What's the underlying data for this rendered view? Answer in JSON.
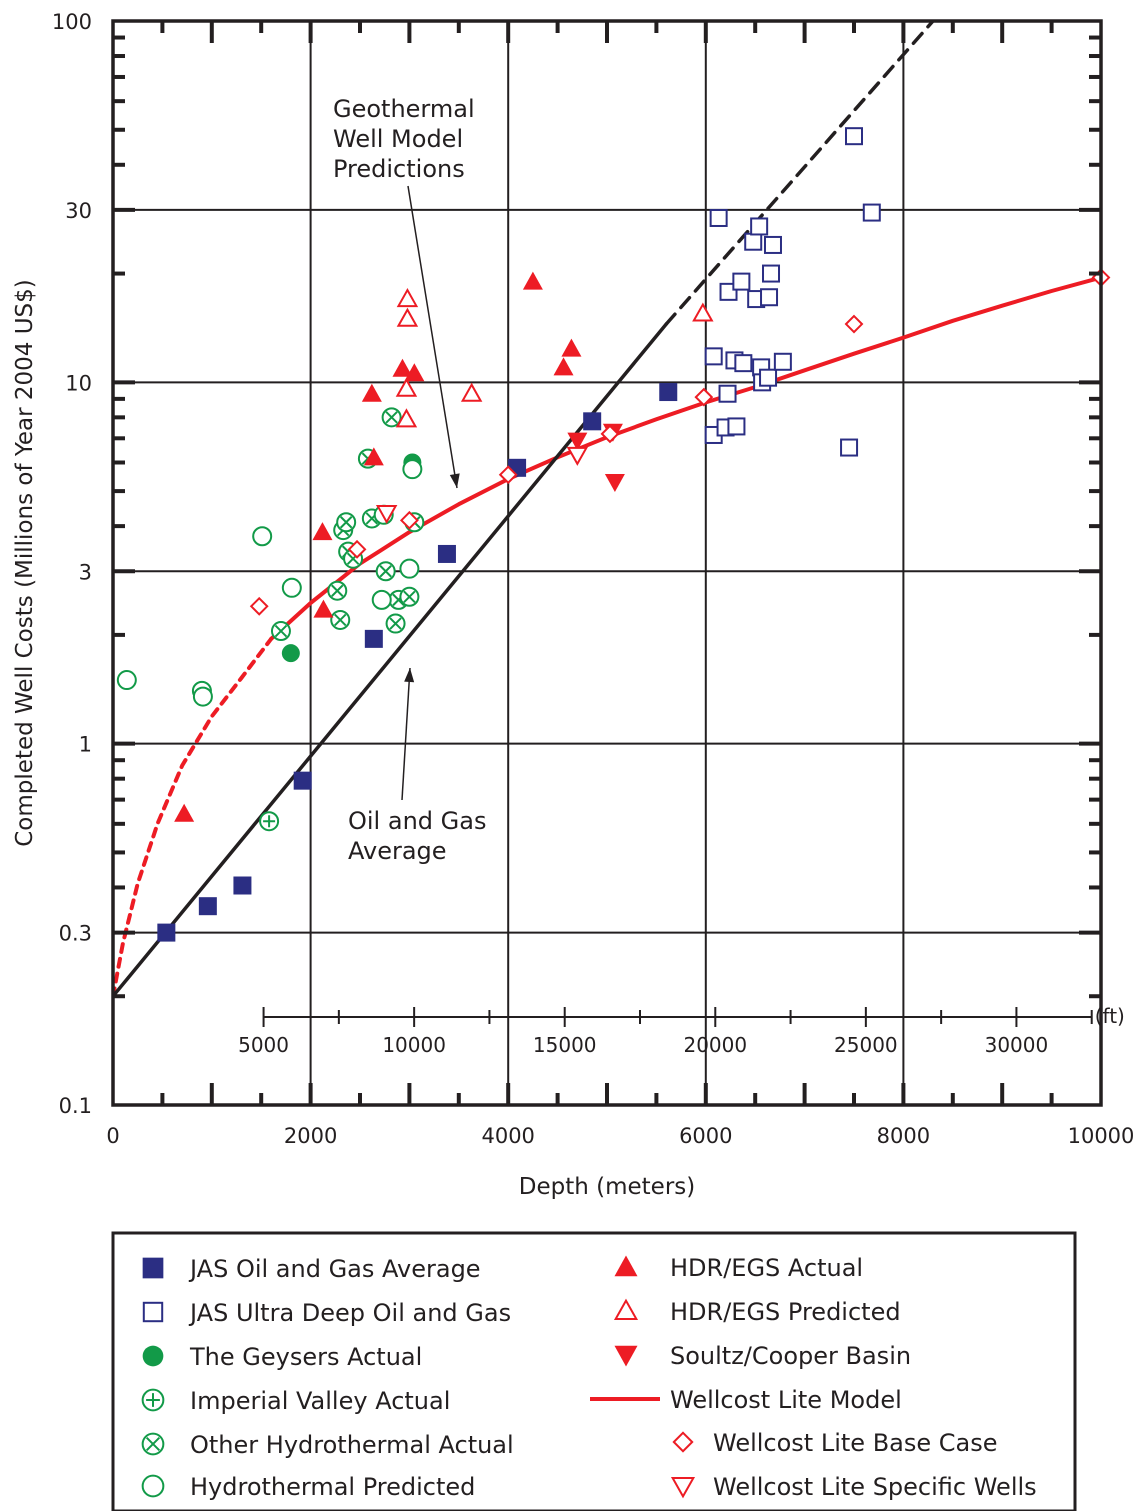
{
  "chart_data": {
    "type": "scatter",
    "xlabel": "Depth (meters)",
    "ylabel": "Completed Well Costs (Millions of Year 2004 US$)",
    "xlim": [
      0,
      10000
    ],
    "ylim": [
      0.1,
      100
    ],
    "y_scale": "log",
    "grid": true,
    "x_ticks": [
      "0",
      "2000",
      "4000",
      "6000",
      "8000",
      "10000"
    ],
    "y_ticks": [
      "0.1",
      "0.3",
      "1",
      "3",
      "10",
      "30",
      "100"
    ],
    "secondary_x": {
      "unit_label": "(ft)",
      "ticks": [
        "5000",
        "10000",
        "15000",
        "20000",
        "25000",
        "30000"
      ],
      "range": [
        5000,
        32500
      ]
    },
    "annotations": {
      "geothermal": "Geothermal\nWell Model\nPredictions",
      "oilgas": "Oil and Gas\nAverage"
    },
    "series": [
      {
        "key": "jas_avg",
        "name": "JAS Oil and Gas Average",
        "marker": "square-filled",
        "color": "#2b2e83",
        "points": [
          [
            540,
            0.3
          ],
          [
            960,
            0.355
          ],
          [
            1310,
            0.405
          ],
          [
            1920,
            0.79
          ],
          [
            2640,
            1.95
          ],
          [
            3380,
            3.35
          ],
          [
            4090,
            5.8
          ],
          [
            4850,
            7.8
          ],
          [
            5620,
            9.4
          ]
        ]
      },
      {
        "key": "jas_ultra",
        "name": "JAS Ultra Deep Oil and Gas",
        "marker": "square-open",
        "color": "#2b2e83",
        "points": [
          [
            6080,
            11.8
          ],
          [
            6130,
            28.5
          ],
          [
            6230,
            17.8
          ],
          [
            6220,
            9.3
          ],
          [
            6080,
            7.15
          ],
          [
            6200,
            7.5
          ],
          [
            6310,
            7.55
          ],
          [
            6290,
            11.5
          ],
          [
            6380,
            11.3
          ],
          [
            6360,
            19.0
          ],
          [
            6480,
            24.5
          ],
          [
            6510,
            17.0
          ],
          [
            6560,
            11.0
          ],
          [
            6540,
            27.0
          ],
          [
            6570,
            10.0
          ],
          [
            6630,
            10.3
          ],
          [
            6640,
            17.2
          ],
          [
            6660,
            20.0
          ],
          [
            6680,
            24.0
          ],
          [
            6780,
            11.4
          ],
          [
            7450,
            6.6
          ],
          [
            7500,
            48.0
          ],
          [
            7680,
            29.5
          ]
        ]
      },
      {
        "key": "geysers",
        "name": "The Geysers Actual",
        "marker": "circle-filled",
        "color": "#129a48",
        "points": [
          [
            1800,
            1.78
          ],
          [
            3030,
            6.0
          ]
        ]
      },
      {
        "key": "imperial",
        "name": "Imperial Valley Actual",
        "marker": "circle-plus",
        "color": "#129a48",
        "points": [
          [
            1580,
            0.61
          ]
        ]
      },
      {
        "key": "other_hydro",
        "name": "Other Hydrothermal Actual",
        "marker": "circle-x",
        "color": "#129a48",
        "points": [
          [
            1700,
            2.05
          ],
          [
            2270,
            2.65
          ],
          [
            2300,
            2.2
          ],
          [
            2330,
            3.9
          ],
          [
            2360,
            4.1
          ],
          [
            2380,
            3.4
          ],
          [
            2430,
            3.25
          ],
          [
            2580,
            6.15
          ],
          [
            2620,
            4.2
          ],
          [
            2760,
            3.0
          ],
          [
            2820,
            8.0
          ],
          [
            2860,
            2.15
          ],
          [
            2890,
            2.5
          ],
          [
            3000,
            2.55
          ],
          [
            3050,
            4.1
          ]
        ]
      },
      {
        "key": "hydro_pred",
        "name": "Hydrothermal Predicted",
        "marker": "circle-open",
        "color": "#129a48",
        "points": [
          [
            140,
            1.5
          ],
          [
            900,
            1.4
          ],
          [
            910,
            1.35
          ],
          [
            1510,
            3.75
          ],
          [
            1810,
            2.7
          ],
          [
            2720,
            2.5
          ],
          [
            2740,
            4.3
          ],
          [
            3000,
            3.05
          ],
          [
            3030,
            5.75
          ]
        ]
      },
      {
        "key": "hdr_actual",
        "name": "HDR/EGS Actual",
        "marker": "triangle-up-filled",
        "color": "#ed1c24",
        "points": [
          [
            720,
            0.64
          ],
          [
            2120,
            3.85
          ],
          [
            2130,
            2.35
          ],
          [
            2620,
            9.3
          ],
          [
            2640,
            6.2
          ],
          [
            2930,
            10.9
          ],
          [
            3050,
            10.6
          ],
          [
            4250,
            19.0
          ],
          [
            4560,
            11.0
          ],
          [
            4640,
            12.4
          ]
        ]
      },
      {
        "key": "hdr_pred",
        "name": "HDR/EGS Predicted",
        "marker": "triangle-up-open",
        "color": "#ed1c24",
        "points": [
          [
            2970,
            9.6
          ],
          [
            2970,
            7.9
          ],
          [
            2980,
            17.0
          ],
          [
            2980,
            15.0
          ],
          [
            3630,
            9.3
          ],
          [
            5970,
            15.5
          ]
        ]
      },
      {
        "key": "soultz",
        "name": "Soultz/Cooper Basin",
        "marker": "triangle-down-filled",
        "color": "#ed1c24",
        "points": [
          [
            4700,
            6.9
          ],
          [
            5060,
            7.3
          ],
          [
            5080,
            5.3
          ]
        ]
      },
      {
        "key": "wl_model",
        "name": "Wellcost Lite Model",
        "marker": "line",
        "color": "#ed1c24",
        "points": [
          [
            1600,
            1.95
          ],
          [
            2000,
            2.45
          ],
          [
            2500,
            3.15
          ],
          [
            3000,
            3.85
          ],
          [
            3500,
            4.6
          ],
          [
            4000,
            5.4
          ],
          [
            4500,
            6.2
          ],
          [
            5000,
            7.05
          ],
          [
            5500,
            7.9
          ],
          [
            6000,
            8.8
          ],
          [
            6500,
            9.7
          ],
          [
            7000,
            10.8
          ],
          [
            7500,
            12.0
          ],
          [
            8000,
            13.3
          ],
          [
            8500,
            14.8
          ],
          [
            9000,
            16.3
          ],
          [
            9500,
            17.9
          ],
          [
            10000,
            19.5
          ]
        ]
      },
      {
        "key": "wl_dashed",
        "marker": "line-dashed",
        "color": "#ed1c24",
        "points": [
          [
            0,
            0.2
          ],
          [
            100,
            0.28
          ],
          [
            250,
            0.41
          ],
          [
            450,
            0.6
          ],
          [
            700,
            0.87
          ],
          [
            1000,
            1.19
          ],
          [
            1300,
            1.52
          ],
          [
            1600,
            1.95
          ]
        ]
      },
      {
        "key": "wl_base",
        "name": "Wellcost Lite Base Case",
        "marker": "diamond-open",
        "color": "#ed1c24",
        "points": [
          [
            1480,
            2.4
          ],
          [
            2470,
            3.45
          ],
          [
            3000,
            4.15
          ],
          [
            4000,
            5.55
          ],
          [
            5030,
            7.2
          ],
          [
            5980,
            9.1
          ],
          [
            7500,
            14.5
          ],
          [
            10000,
            19.5
          ]
        ]
      },
      {
        "key": "wl_specific",
        "name": "Wellcost Lite Specific Wells",
        "marker": "triangle-down-open",
        "color": "#ed1c24",
        "points": [
          [
            2770,
            4.35
          ],
          [
            4700,
            6.3
          ]
        ]
      },
      {
        "key": "og_line",
        "marker": "line",
        "color": "#231f20",
        "points": [
          [
            0,
            0.2
          ],
          [
            5600,
            14.5
          ]
        ]
      },
      {
        "key": "og_dashed",
        "marker": "line-dashed",
        "color": "#231f20",
        "points": [
          [
            5600,
            14.5
          ],
          [
            8300,
            100
          ]
        ]
      }
    ]
  }
}
